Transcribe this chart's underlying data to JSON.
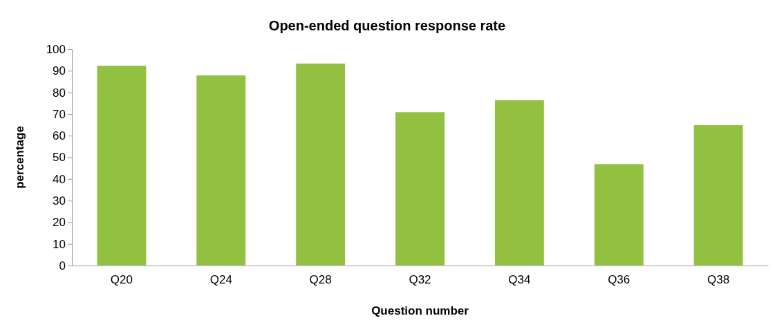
{
  "chart_data": {
    "type": "bar",
    "title": "Open-ended question response rate",
    "xlabel": "Question number",
    "ylabel": "percentage",
    "categories": [
      "Q20",
      "Q24",
      "Q28",
      "Q32",
      "Q34",
      "Q36",
      "Q38"
    ],
    "values": [
      92.5,
      88,
      93.5,
      71,
      76.5,
      47,
      65
    ],
    "color": "#92c040",
    "ylim": [
      0,
      100
    ],
    "yticks": [
      0,
      10,
      20,
      30,
      40,
      50,
      60,
      70,
      80,
      90,
      100
    ],
    "grid": false
  }
}
